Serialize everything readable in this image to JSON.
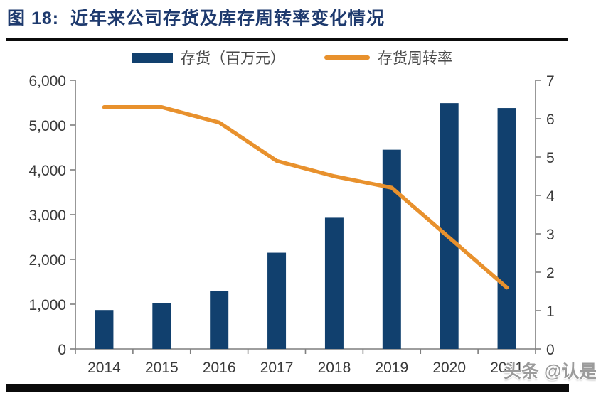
{
  "figure": {
    "title": "图 18:  近年来公司存货及库存周转率变化情况",
    "watermark": "头条 @认是"
  },
  "legend": [
    {
      "label": "存货（百万元）",
      "type": "bar",
      "color": "#11406e"
    },
    {
      "label": "存货周转率",
      "type": "line",
      "color": "#e8912d"
    }
  ],
  "colors": {
    "bar": "#11406e",
    "line": "#e8912d",
    "axis": "#7f7f7f",
    "tick_text": "#3a3a3a",
    "title": "#1e3a6e",
    "rule": "#0b0b0b"
  },
  "chart_data": {
    "type": "bar",
    "subtype": "bar-line combo, dual axis",
    "title": "近年来公司存货及库存周转率变化情况",
    "categories": [
      "2014",
      "2015",
      "2016",
      "2017",
      "2018",
      "2019",
      "2020",
      "2021"
    ],
    "series": [
      {
        "name": "存货（百万元）",
        "type": "bar",
        "axis": "left",
        "color": "#11406e",
        "values": [
          870,
          1020,
          1300,
          2150,
          2930,
          4450,
          5490,
          5380
        ]
      },
      {
        "name": "存货周转率",
        "type": "line",
        "axis": "right",
        "color": "#e8912d",
        "values": [
          6.3,
          6.3,
          5.9,
          4.9,
          4.5,
          4.2,
          2.9,
          1.6
        ]
      }
    ],
    "left_axis": {
      "min": 0,
      "max": 6000,
      "step": 1000,
      "tick_labels": [
        "0",
        "1,000",
        "2,000",
        "3,000",
        "4,000",
        "5,000",
        "6,000"
      ]
    },
    "right_axis": {
      "min": 0,
      "max": 7,
      "step": 1,
      "tick_labels": [
        "0",
        "1",
        "2",
        "3",
        "4",
        "5",
        "6",
        "7"
      ]
    },
    "x_tick_labels": [
      "2014",
      "2015",
      "2016",
      "2017",
      "2018",
      "2019",
      "2020",
      "2021"
    ],
    "grid": false,
    "legend_position": "top"
  }
}
